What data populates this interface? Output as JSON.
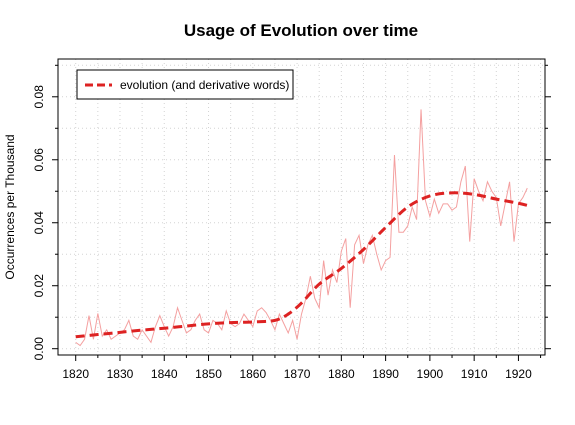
{
  "chart_data": {
    "type": "line",
    "title": "Usage of Evolution over time",
    "xlabel": "",
    "ylabel": "Occurrences per Thousand",
    "xlim": [
      1816,
      1926
    ],
    "ylim": [
      -0.002,
      0.092
    ],
    "x_ticks": [
      1820,
      1830,
      1840,
      1850,
      1860,
      1870,
      1880,
      1890,
      1900,
      1910,
      1920
    ],
    "x_tick_labels": [
      "1820",
      "1830",
      "1840",
      "1850",
      "1860",
      "1870",
      "1880",
      "1890",
      "1900",
      "1910",
      "1920"
    ],
    "y_ticks": [
      0,
      0.02,
      0.04,
      0.06,
      0.08
    ],
    "y_tick_labels": [
      "0.00",
      "0.02",
      "0.04",
      "0.06",
      "0.08"
    ],
    "grid": true,
    "legend": {
      "placement": "top-left",
      "entries": [
        "evolution (and derivative words)"
      ]
    },
    "series": [
      {
        "name": "",
        "style": "thin",
        "color": "#f4a0a0",
        "x": [
          1820,
          1821,
          1822,
          1823,
          1824,
          1825,
          1826,
          1827,
          1828,
          1829,
          1830,
          1831,
          1832,
          1833,
          1834,
          1835,
          1836,
          1837,
          1838,
          1839,
          1840,
          1841,
          1842,
          1843,
          1844,
          1845,
          1846,
          1847,
          1848,
          1849,
          1850,
          1851,
          1852,
          1853,
          1854,
          1855,
          1856,
          1857,
          1858,
          1859,
          1860,
          1861,
          1862,
          1863,
          1864,
          1865,
          1866,
          1867,
          1868,
          1869,
          1870,
          1871,
          1872,
          1873,
          1874,
          1875,
          1876,
          1877,
          1878,
          1879,
          1880,
          1881,
          1882,
          1883,
          1884,
          1885,
          1886,
          1887,
          1888,
          1889,
          1890,
          1891,
          1892,
          1893,
          1894,
          1895,
          1896,
          1897,
          1898,
          1899,
          1900,
          1901,
          1902,
          1903,
          1904,
          1905,
          1906,
          1907,
          1908,
          1909,
          1910,
          1911,
          1912,
          1913,
          1914,
          1915,
          1916,
          1917,
          1918,
          1919,
          1920,
          1921,
          1922
        ],
        "y": [
          0.002,
          0.001,
          0.003,
          0.0105,
          0.003,
          0.0112,
          0.004,
          0.006,
          0.003,
          0.004,
          0.005,
          0.006,
          0.009,
          0.004,
          0.003,
          0.006,
          0.004,
          0.002,
          0.007,
          0.0105,
          0.007,
          0.004,
          0.007,
          0.013,
          0.009,
          0.005,
          0.006,
          0.009,
          0.011,
          0.006,
          0.005,
          0.009,
          0.008,
          0.006,
          0.012,
          0.008,
          0.007,
          0.008,
          0.011,
          0.009,
          0.007,
          0.012,
          0.013,
          0.0115,
          0.009,
          0.006,
          0.011,
          0.008,
          0.005,
          0.009,
          0.003,
          0.011,
          0.016,
          0.023,
          0.016,
          0.013,
          0.028,
          0.017,
          0.025,
          0.021,
          0.031,
          0.035,
          0.013,
          0.033,
          0.036,
          0.027,
          0.033,
          0.036,
          0.03,
          0.025,
          0.028,
          0.029,
          0.0615,
          0.037,
          0.037,
          0.039,
          0.045,
          0.041,
          0.076,
          0.047,
          0.042,
          0.0475,
          0.043,
          0.046,
          0.046,
          0.044,
          0.045,
          0.053,
          0.058,
          0.034,
          0.054,
          0.05,
          0.047,
          0.053,
          0.05,
          0.048,
          0.039,
          0.046,
          0.053,
          0.034,
          0.046,
          0.048,
          0.051
        ]
      },
      {
        "name": "evolution (and derivative words)",
        "style": "smooth-dashed",
        "color": "#dd2222",
        "x": [
          1820,
          1825,
          1830,
          1835,
          1840,
          1845,
          1850,
          1855,
          1860,
          1865,
          1868,
          1871,
          1875,
          1880,
          1885,
          1890,
          1895,
          1900,
          1905,
          1910,
          1915,
          1920,
          1922
        ],
        "y": [
          0.0038,
          0.0045,
          0.0052,
          0.0059,
          0.0065,
          0.0072,
          0.0079,
          0.0083,
          0.0085,
          0.009,
          0.011,
          0.0145,
          0.0205,
          0.0255,
          0.0315,
          0.0385,
          0.045,
          0.0485,
          0.0495,
          0.049,
          0.0475,
          0.0462,
          0.0455
        ]
      }
    ]
  }
}
